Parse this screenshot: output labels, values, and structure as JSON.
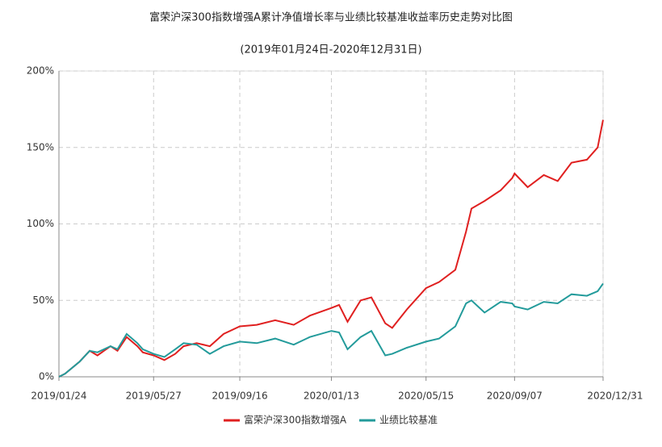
{
  "chart_data": {
    "type": "line",
    "title": "富荣沪深300指数增强A累计净值增长率与业绩比较基准收益率历史走势对比图",
    "subtitle": "(2019年01月24日-2020年12月31日)",
    "x": [
      "2019/01/24",
      "2019/02/01",
      "2019/02/20",
      "2019/03/05",
      "2019/03/15",
      "2019/04/01",
      "2019/04/10",
      "2019/04/22",
      "2019/05/06",
      "2019/05/13",
      "2019/05/27",
      "2019/06/10",
      "2019/06/24",
      "2019/07/05",
      "2019/07/22",
      "2019/08/08",
      "2019/08/26",
      "2019/09/16",
      "2019/10/08",
      "2019/11/01",
      "2019/11/25",
      "2019/12/16",
      "2020/01/13",
      "2020/01/23",
      "2020/02/03",
      "2020/02/20",
      "2020/03/05",
      "2020/03/23",
      "2020/04/01",
      "2020/04/20",
      "2020/05/15",
      "2020/06/01",
      "2020/06/22",
      "2020/07/06",
      "2020/07/13",
      "2020/07/30",
      "2020/08/20",
      "2020/09/04",
      "2020/09/07",
      "2020/09/24",
      "2020/10/15",
      "2020/11/02",
      "2020/11/20",
      "2020/12/10",
      "2020/12/24",
      "2020/12/31"
    ],
    "series": [
      {
        "name": "富荣沪深300指数增强A",
        "color": "#e02020",
        "values": [
          0,
          2,
          10,
          17,
          14,
          20,
          17,
          26,
          20,
          16,
          14,
          11,
          15,
          20,
          22,
          20,
          28,
          33,
          34,
          37,
          34,
          40,
          45,
          47,
          36,
          50,
          52,
          35,
          32,
          44,
          58,
          62,
          70,
          95,
          110,
          115,
          122,
          130,
          133,
          124,
          132,
          128,
          140,
          142,
          150,
          168
        ]
      },
      {
        "name": "业绩比较基准",
        "color": "#239b9b",
        "values": [
          0,
          2,
          10,
          17,
          16,
          20,
          18,
          28,
          22,
          18,
          15,
          13,
          18,
          22,
          21,
          15,
          20,
          23,
          22,
          25,
          21,
          26,
          30,
          29,
          18,
          26,
          30,
          14,
          15,
          19,
          23,
          25,
          33,
          48,
          50,
          42,
          49,
          48,
          46,
          44,
          49,
          48,
          54,
          53,
          56,
          61
        ]
      }
    ],
    "xlim": [
      "2019/01/24",
      "2020/12/31"
    ],
    "xticks": [
      "2019/01/24",
      "2019/05/27",
      "2019/09/16",
      "2020/01/13",
      "2020/05/15",
      "2020/09/07",
      "2020/12/31"
    ],
    "ylim": [
      0,
      200
    ],
    "yticks": [
      {
        "value": 0,
        "label": "0%"
      },
      {
        "value": 50,
        "label": "50%"
      },
      {
        "value": 100,
        "label": "100%"
      },
      {
        "value": 150,
        "label": "150%"
      },
      {
        "value": 200,
        "label": "200%"
      }
    ],
    "grid": true,
    "legend": "bottom"
  }
}
